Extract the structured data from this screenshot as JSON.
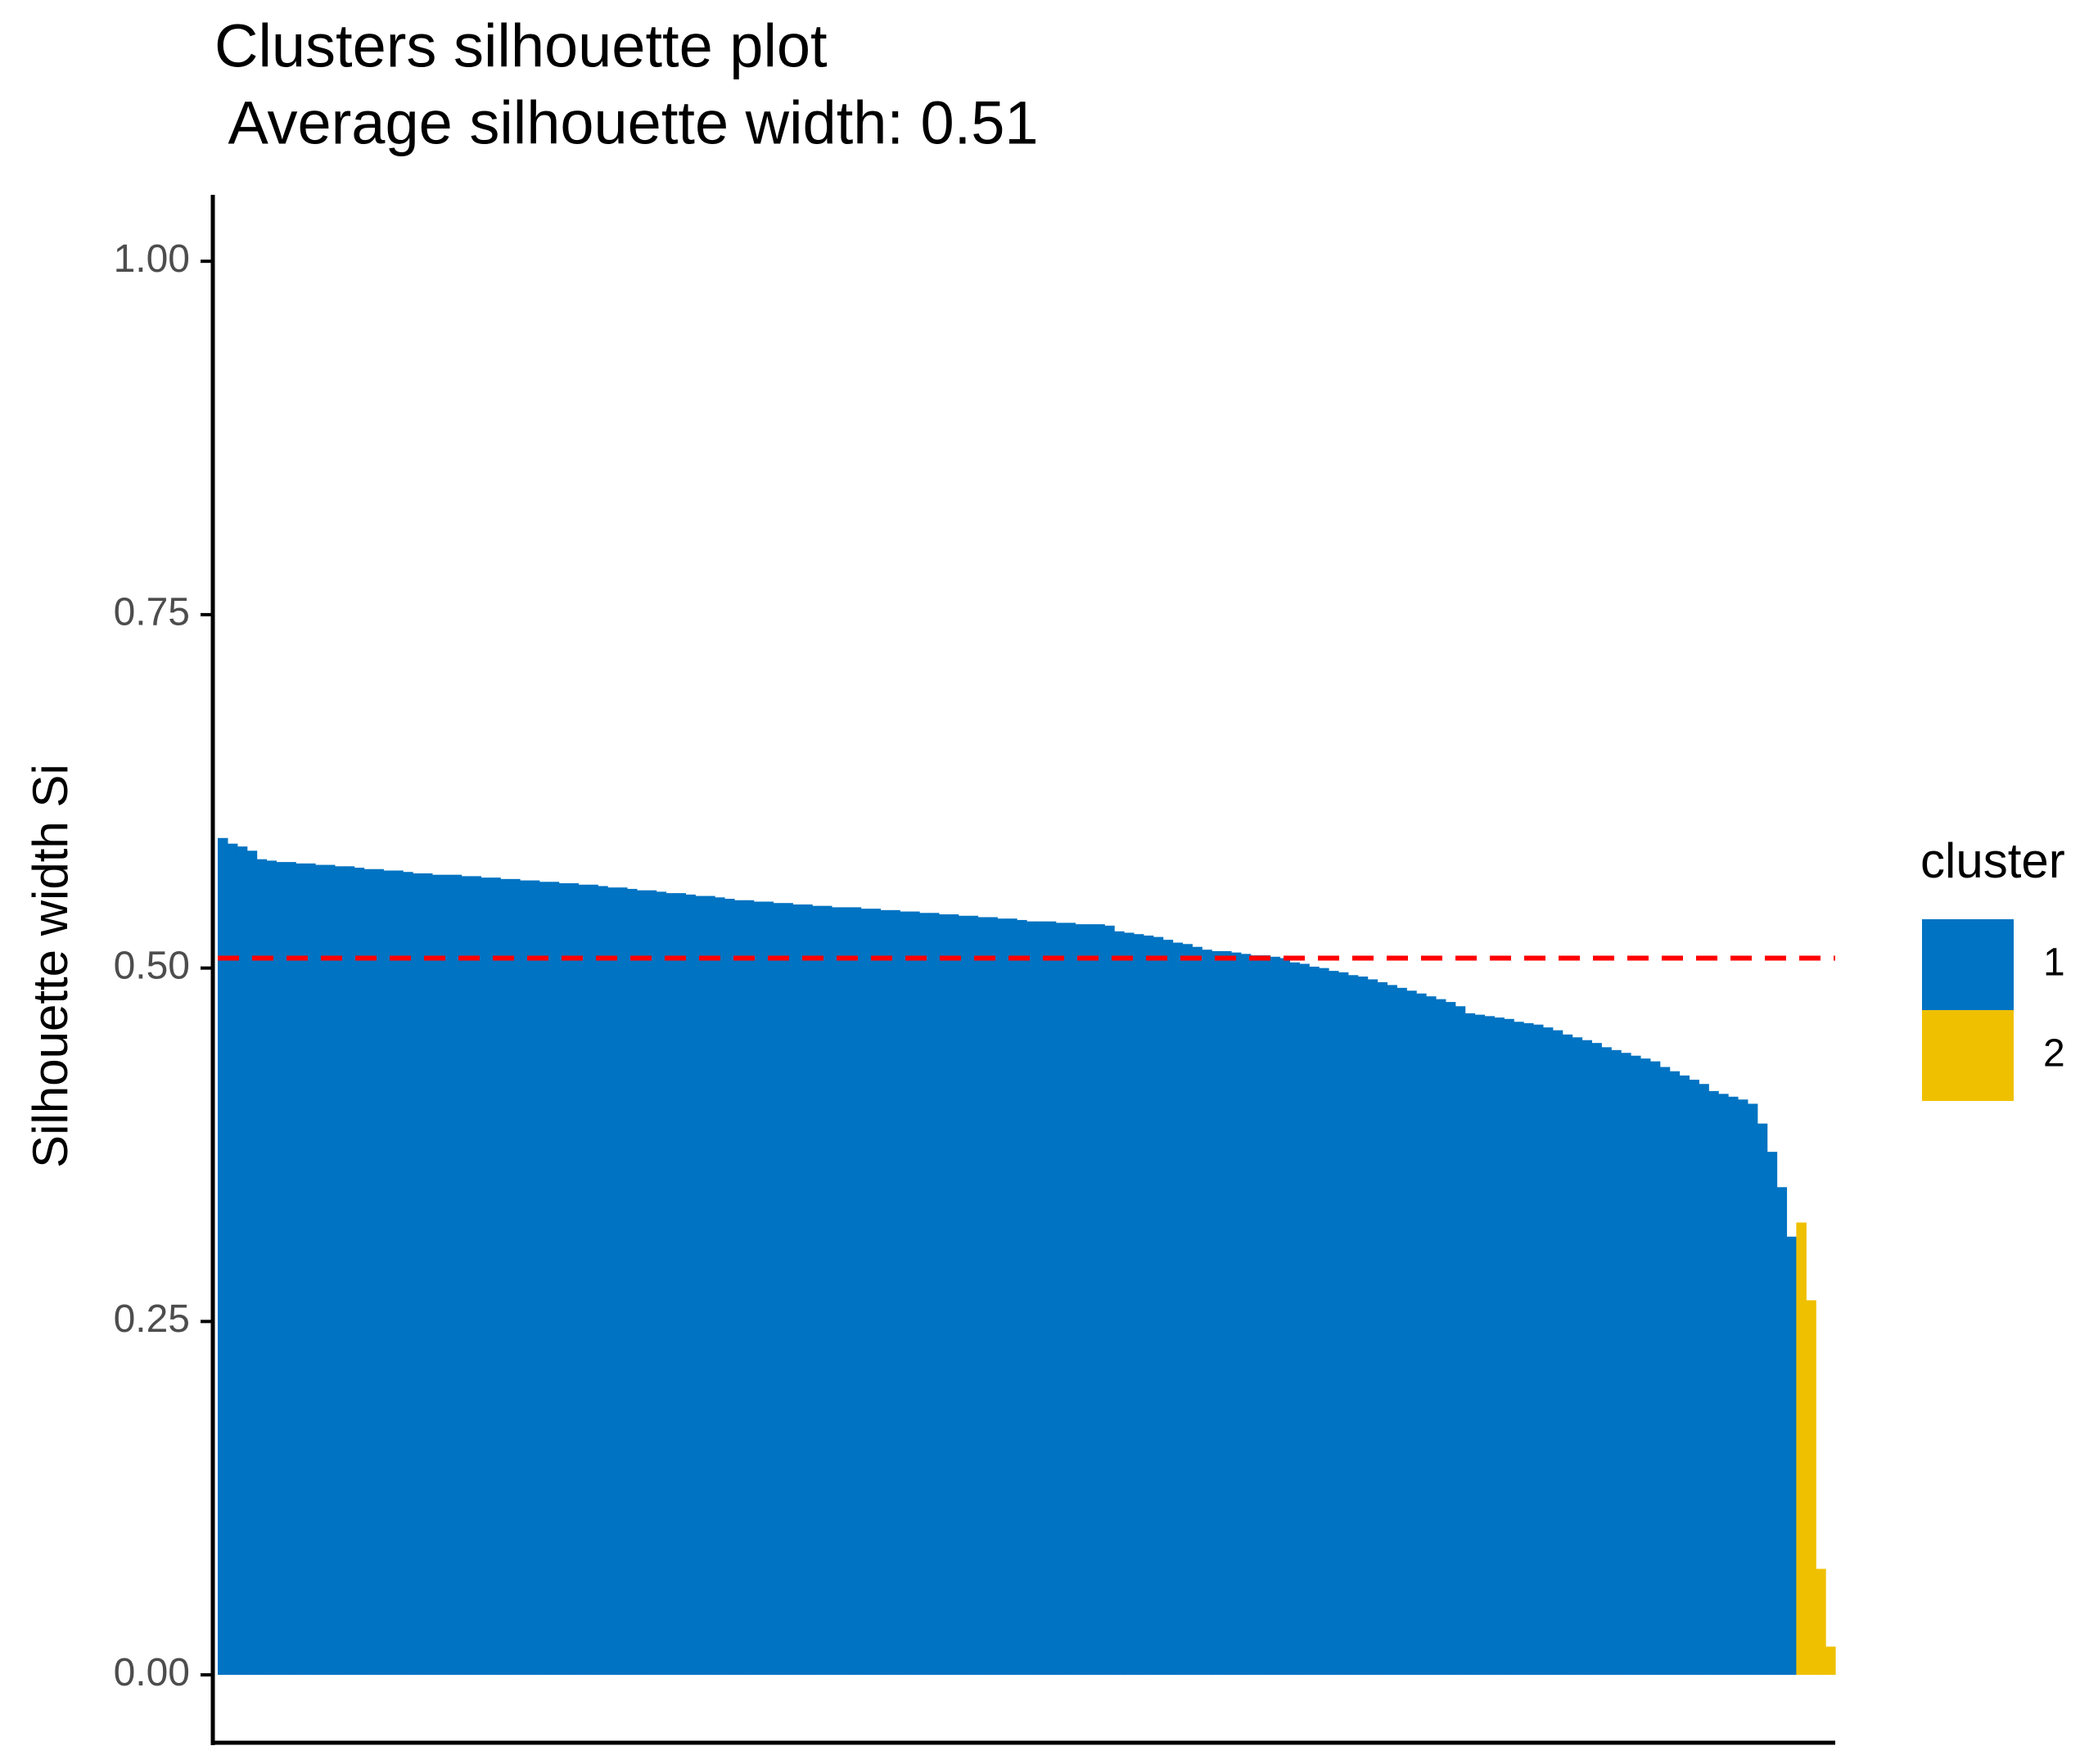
{
  "chart_data": {
    "type": "bar",
    "title": "Clusters silhouette plot",
    "subtitle": " Average silhouette width: 0.51",
    "y_label": "Silhouette width Si",
    "legend_title": "cluster",
    "legend_position": "right",
    "ylim": [
      -0.048,
      1.047
    ],
    "yticks": [
      {
        "value": 0,
        "label": "0.00"
      },
      {
        "value": 0.25,
        "label": "0.25"
      },
      {
        "value": 0.5,
        "label": "0.50"
      },
      {
        "value": 0.75,
        "label": "0.75"
      },
      {
        "value": 1,
        "label": "1.00"
      }
    ],
    "hline": {
      "value": 0.507,
      "color": "#ff0000"
    },
    "series": [
      {
        "name": "1",
        "color": "#0073C2",
        "values": [
          0.592,
          0.588,
          0.586,
          0.583,
          0.577,
          0.576,
          0.575,
          0.575,
          0.574,
          0.574,
          0.573,
          0.573,
          0.572,
          0.572,
          0.571,
          0.57,
          0.57,
          0.569,
          0.569,
          0.568,
          0.567,
          0.567,
          0.566,
          0.566,
          0.566,
          0.565,
          0.565,
          0.564,
          0.564,
          0.563,
          0.563,
          0.562,
          0.562,
          0.561,
          0.561,
          0.56,
          0.56,
          0.559,
          0.559,
          0.558,
          0.557,
          0.557,
          0.556,
          0.555,
          0.555,
          0.554,
          0.553,
          0.553,
          0.552,
          0.551,
          0.551,
          0.55,
          0.549,
          0.548,
          0.548,
          0.547,
          0.547,
          0.546,
          0.546,
          0.545,
          0.545,
          0.544,
          0.544,
          0.543,
          0.543,
          0.543,
          0.542,
          0.542,
          0.541,
          0.541,
          0.54,
          0.54,
          0.539,
          0.539,
          0.538,
          0.538,
          0.537,
          0.537,
          0.536,
          0.536,
          0.535,
          0.535,
          0.534,
          0.533,
          0.533,
          0.533,
          0.532,
          0.532,
          0.531,
          0.531,
          0.531,
          0.53,
          0.526,
          0.525,
          0.524,
          0.523,
          0.522,
          0.52,
          0.518,
          0.517,
          0.515,
          0.513,
          0.512,
          0.512,
          0.511,
          0.51,
          0.509,
          0.509,
          0.508,
          0.507,
          0.504,
          0.503,
          0.501,
          0.5,
          0.498,
          0.497,
          0.495,
          0.494,
          0.492,
          0.49,
          0.488,
          0.486,
          0.484,
          0.482,
          0.48,
          0.478,
          0.476,
          0.473,
          0.468,
          0.467,
          0.466,
          0.465,
          0.464,
          0.462,
          0.461,
          0.46,
          0.458,
          0.456,
          0.453,
          0.451,
          0.449,
          0.447,
          0.444,
          0.442,
          0.44,
          0.438,
          0.436,
          0.434,
          0.43,
          0.427,
          0.424,
          0.421,
          0.418,
          0.413,
          0.411,
          0.409,
          0.407,
          0.404,
          0.39,
          0.37,
          0.345,
          0.31
        ]
      },
      {
        "name": "2",
        "color": "#EFC000",
        "values": [
          0.32,
          0.265,
          0.075,
          0.02
        ]
      }
    ]
  }
}
